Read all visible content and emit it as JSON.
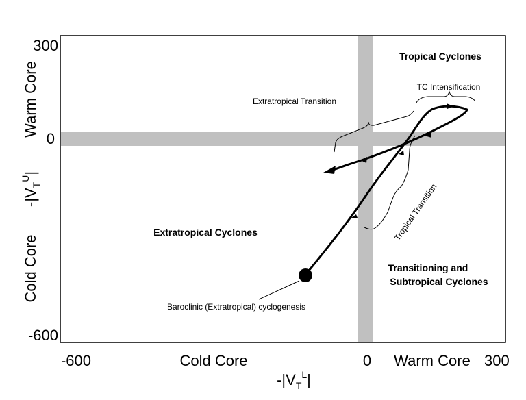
{
  "axes": {
    "x_label_main": "-|V",
    "x_label_sub": "T",
    "x_label_sup": "L",
    "x_label_end": "|",
    "y_label_main": "-|V",
    "y_label_sub": "T",
    "y_label_sup": "U",
    "y_label_end": "|",
    "x_ticks": [
      "-600",
      "0",
      "300"
    ],
    "y_ticks": [
      "300",
      "0",
      "-600"
    ],
    "x_cold": "Cold Core",
    "x_warm": "Warm Core",
    "y_warm": "Warm Core",
    "y_cold": "Cold Core"
  },
  "regions": {
    "tropical": "Tropical Cyclones",
    "extratropical": "Extratropical Cyclones",
    "transitioning_line1": "Transitioning and",
    "transitioning_line2": "Subtropical Cyclones"
  },
  "annotations": {
    "tc_intensification": "TC Intensification",
    "extratropical_transition": "Extratropical Transition",
    "tropical_transition": "Tropical Transition",
    "cyclogenesis": "Baroclinic (Extratropical) cyclogenesis"
  },
  "colors": {
    "band": "#c0c0c0",
    "line": "#000000",
    "frame": "#000000"
  }
}
